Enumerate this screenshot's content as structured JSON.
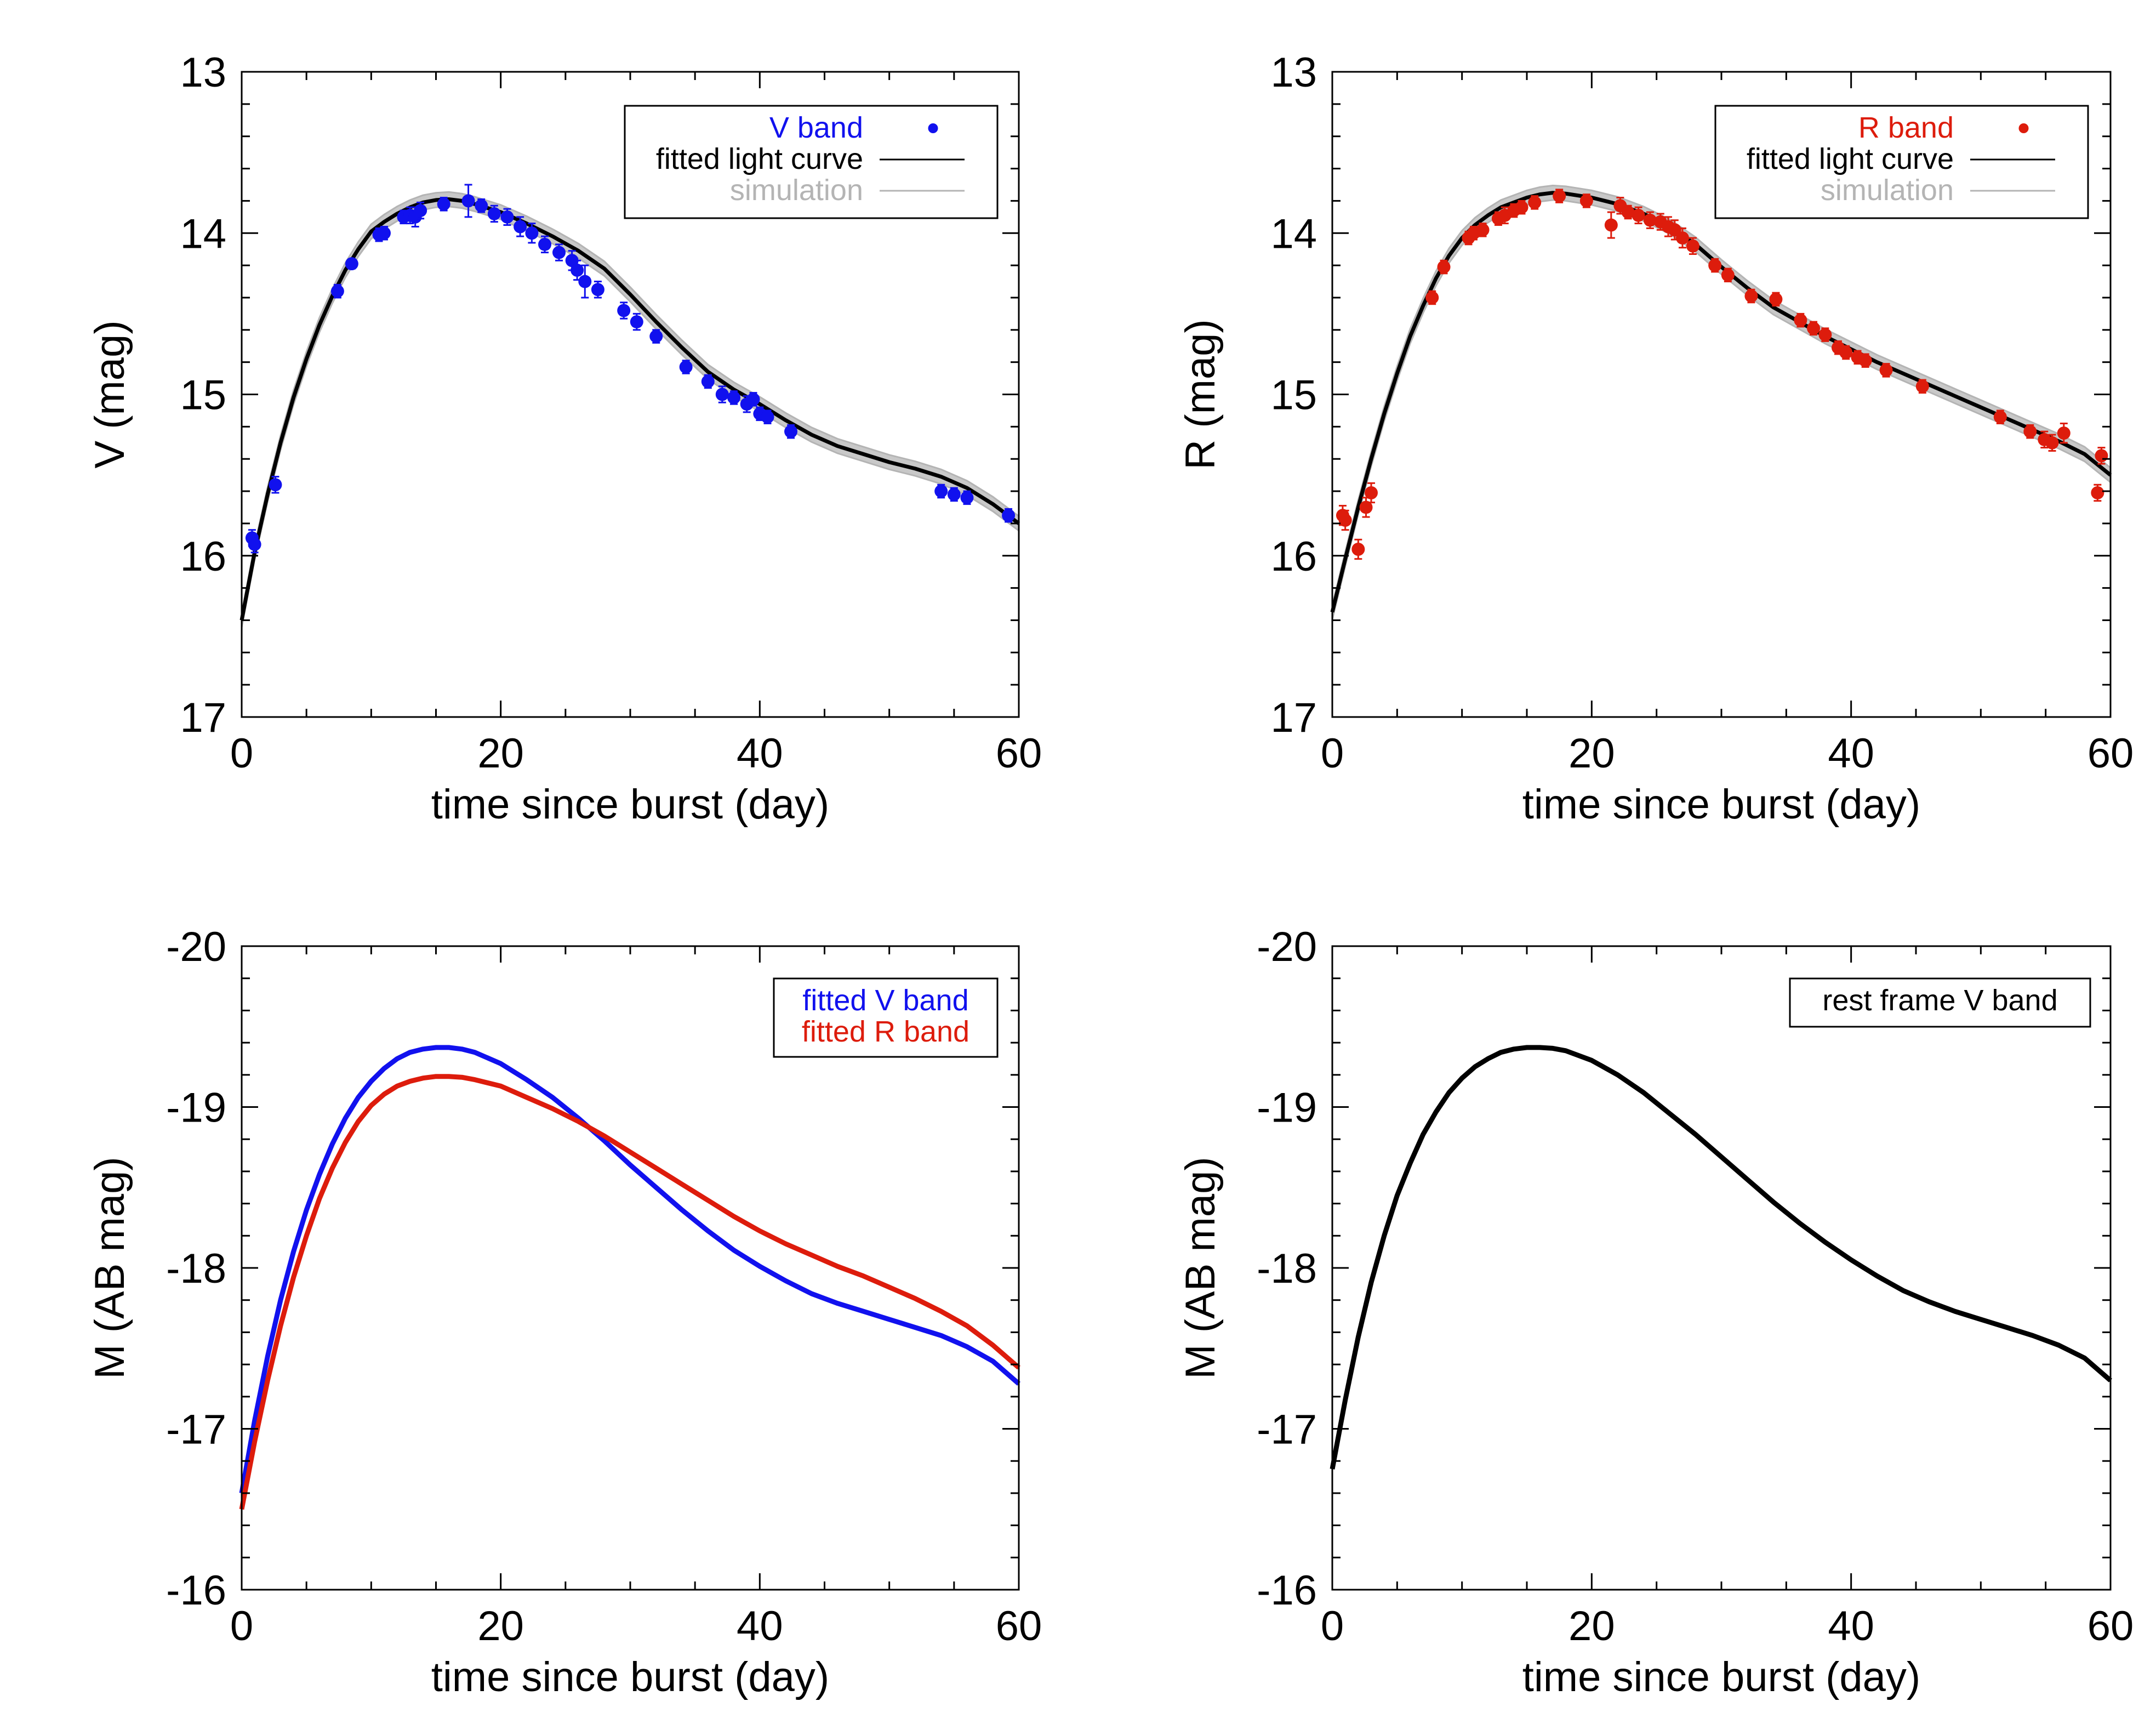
{
  "chart_data": [
    {
      "id": "v-band",
      "type": "scatter",
      "xlabel": "time since burst (day)",
      "ylabel": "V (mag)",
      "xlim": [
        0,
        60
      ],
      "ylim": [
        17,
        13
      ],
      "y_inverted": true,
      "xticks": [
        0,
        20,
        40,
        60
      ],
      "yticks": [
        13,
        14,
        15,
        16,
        17
      ],
      "legend": {
        "placement": "top-right",
        "entries": [
          {
            "label": "V band",
            "color": "#1111ee",
            "kind": "point"
          },
          {
            "label": "fitted light curve",
            "color": "#000000",
            "kind": "line"
          },
          {
            "label": "simulation",
            "color": "#b4b4b4",
            "kind": "line"
          }
        ]
      },
      "curve": [
        [
          0,
          16.4
        ],
        [
          1,
          15.98
        ],
        [
          2,
          15.62
        ],
        [
          3,
          15.3
        ],
        [
          4,
          15.02
        ],
        [
          5,
          14.78
        ],
        [
          6,
          14.57
        ],
        [
          7,
          14.39
        ],
        [
          8,
          14.23
        ],
        [
          9,
          14.1
        ],
        [
          10,
          13.99
        ],
        [
          11,
          13.93
        ],
        [
          12,
          13.88
        ],
        [
          13,
          13.84
        ],
        [
          14,
          13.81
        ],
        [
          15,
          13.795
        ],
        [
          16,
          13.79
        ],
        [
          17,
          13.8
        ],
        [
          18,
          13.82
        ],
        [
          20,
          13.87
        ],
        [
          22,
          13.94
        ],
        [
          24,
          14.02
        ],
        [
          26,
          14.11
        ],
        [
          28,
          14.22
        ],
        [
          30,
          14.38
        ],
        [
          32,
          14.55
        ],
        [
          34,
          14.71
        ],
        [
          36,
          14.86
        ],
        [
          38,
          14.97
        ],
        [
          40,
          15.06
        ],
        [
          42,
          15.16
        ],
        [
          44,
          15.25
        ],
        [
          46,
          15.32
        ],
        [
          48,
          15.37
        ],
        [
          50,
          15.42
        ],
        [
          52,
          15.46
        ],
        [
          54,
          15.51
        ],
        [
          56,
          15.58
        ],
        [
          58,
          15.68
        ],
        [
          60,
          15.8
        ]
      ],
      "points": [
        [
          0.8,
          15.89,
          0.05
        ],
        [
          1.0,
          15.93,
          0.05
        ],
        [
          2.6,
          15.56,
          0.05
        ],
        [
          7.4,
          14.36,
          0.04
        ],
        [
          8.5,
          14.19,
          0.03
        ],
        [
          10.6,
          14.01,
          0.04
        ],
        [
          11.0,
          14.0,
          0.04
        ],
        [
          12.5,
          13.9,
          0.04
        ],
        [
          13.0,
          13.89,
          0.05
        ],
        [
          13.4,
          13.9,
          0.06
        ],
        [
          13.8,
          13.86,
          0.05
        ],
        [
          15.6,
          13.82,
          0.04
        ],
        [
          17.5,
          13.8,
          0.1
        ],
        [
          18.5,
          13.83,
          0.04
        ],
        [
          19.5,
          13.88,
          0.05
        ],
        [
          20.5,
          13.9,
          0.05
        ],
        [
          21.5,
          13.96,
          0.06
        ],
        [
          22.4,
          14.0,
          0.06
        ],
        [
          23.4,
          14.07,
          0.05
        ],
        [
          24.5,
          14.12,
          0.05
        ],
        [
          25.5,
          14.17,
          0.06
        ],
        [
          25.9,
          14.23,
          0.06
        ],
        [
          26.5,
          14.3,
          0.1
        ],
        [
          27.5,
          14.35,
          0.05
        ],
        [
          29.5,
          14.48,
          0.05
        ],
        [
          30.5,
          14.55,
          0.05
        ],
        [
          32.0,
          14.64,
          0.04
        ],
        [
          34.3,
          14.83,
          0.04
        ],
        [
          36.0,
          14.92,
          0.04
        ],
        [
          37.1,
          15.0,
          0.05
        ],
        [
          38.0,
          15.02,
          0.04
        ],
        [
          39.0,
          15.06,
          0.05
        ],
        [
          39.5,
          15.03,
          0.04
        ],
        [
          40.0,
          15.12,
          0.04
        ],
        [
          40.6,
          15.14,
          0.04
        ],
        [
          42.4,
          15.23,
          0.04
        ],
        [
          54.0,
          15.6,
          0.04
        ],
        [
          55.0,
          15.62,
          0.04
        ],
        [
          56.0,
          15.64,
          0.04
        ],
        [
          59.2,
          15.75,
          0.04
        ]
      ]
    },
    {
      "id": "r-band",
      "type": "scatter",
      "xlabel": "time since burst (day)",
      "ylabel": "R (mag)",
      "xlim": [
        0,
        60
      ],
      "ylim": [
        17,
        13
      ],
      "y_inverted": true,
      "xticks": [
        0,
        20,
        40,
        60
      ],
      "yticks": [
        13,
        14,
        15,
        16,
        17
      ],
      "legend": {
        "placement": "top-right",
        "entries": [
          {
            "label": "R band",
            "color": "#dd1c0c",
            "kind": "point"
          },
          {
            "label": "fitted light curve",
            "color": "#000000",
            "kind": "line"
          },
          {
            "label": "simulation",
            "color": "#b4b4b4",
            "kind": "line"
          }
        ]
      },
      "curve": [
        [
          0,
          16.35
        ],
        [
          1,
          16.02
        ],
        [
          2,
          15.7
        ],
        [
          3,
          15.4
        ],
        [
          4,
          15.12
        ],
        [
          5,
          14.87
        ],
        [
          6,
          14.64
        ],
        [
          7,
          14.45
        ],
        [
          8,
          14.28
        ],
        [
          9,
          14.14
        ],
        [
          10,
          14.03
        ],
        [
          11,
          13.95
        ],
        [
          12,
          13.89
        ],
        [
          13,
          13.84
        ],
        [
          14,
          13.81
        ],
        [
          15,
          13.78
        ],
        [
          16,
          13.76
        ],
        [
          17,
          13.75
        ],
        [
          18,
          13.755
        ],
        [
          20,
          13.78
        ],
        [
          22,
          13.82
        ],
        [
          24,
          13.88
        ],
        [
          26,
          13.96
        ],
        [
          28,
          14.07
        ],
        [
          30,
          14.21
        ],
        [
          32,
          14.34
        ],
        [
          34,
          14.46
        ],
        [
          36,
          14.55
        ],
        [
          38,
          14.64
        ],
        [
          40,
          14.72
        ],
        [
          42,
          14.8
        ],
        [
          44,
          14.87
        ],
        [
          46,
          14.94
        ],
        [
          48,
          15.01
        ],
        [
          50,
          15.08
        ],
        [
          52,
          15.15
        ],
        [
          54,
          15.22
        ],
        [
          56,
          15.29
        ],
        [
          58,
          15.37
        ],
        [
          60,
          15.5
        ]
      ],
      "points": [
        [
          0.8,
          15.75,
          0.06
        ],
        [
          1.0,
          15.78,
          0.06
        ],
        [
          2.0,
          15.96,
          0.06
        ],
        [
          2.6,
          15.7,
          0.06
        ],
        [
          3.0,
          15.61,
          0.06
        ],
        [
          7.7,
          14.4,
          0.04
        ],
        [
          8.6,
          14.21,
          0.04
        ],
        [
          10.5,
          14.03,
          0.04
        ],
        [
          10.9,
          14.0,
          0.04
        ],
        [
          11.6,
          13.98,
          0.04
        ],
        [
          12.8,
          13.91,
          0.04
        ],
        [
          13.3,
          13.89,
          0.05
        ],
        [
          14.0,
          13.86,
          0.04
        ],
        [
          14.6,
          13.84,
          0.04
        ],
        [
          15.6,
          13.81,
          0.04
        ],
        [
          17.5,
          13.77,
          0.04
        ],
        [
          19.6,
          13.8,
          0.04
        ],
        [
          21.5,
          13.95,
          0.08
        ],
        [
          22.2,
          13.83,
          0.05
        ],
        [
          22.8,
          13.87,
          0.04
        ],
        [
          23.6,
          13.89,
          0.05
        ],
        [
          24.5,
          13.92,
          0.05
        ],
        [
          25.3,
          13.93,
          0.05
        ],
        [
          25.9,
          13.96,
          0.06
        ],
        [
          26.4,
          13.98,
          0.06
        ],
        [
          27.0,
          14.03,
          0.06
        ],
        [
          27.8,
          14.08,
          0.05
        ],
        [
          29.5,
          14.2,
          0.04
        ],
        [
          30.5,
          14.26,
          0.04
        ],
        [
          32.3,
          14.39,
          0.04
        ],
        [
          34.2,
          14.41,
          0.04
        ],
        [
          36.1,
          14.54,
          0.04
        ],
        [
          37.1,
          14.59,
          0.04
        ],
        [
          38.0,
          14.63,
          0.04
        ],
        [
          39.0,
          14.71,
          0.04
        ],
        [
          39.6,
          14.74,
          0.04
        ],
        [
          40.5,
          14.77,
          0.04
        ],
        [
          41.1,
          14.79,
          0.04
        ],
        [
          42.7,
          14.85,
          0.04
        ],
        [
          45.5,
          14.95,
          0.04
        ],
        [
          51.5,
          15.14,
          0.04
        ],
        [
          53.8,
          15.23,
          0.04
        ],
        [
          54.9,
          15.28,
          0.05
        ],
        [
          55.5,
          15.3,
          0.05
        ],
        [
          56.4,
          15.24,
          0.06
        ],
        [
          59.0,
          15.61,
          0.05
        ],
        [
          59.3,
          15.38,
          0.05
        ]
      ]
    },
    {
      "id": "abs-mag-vr",
      "type": "line",
      "xlabel": "time since burst (day)",
      "ylabel": "M (AB mag)",
      "xlim": [
        0,
        60
      ],
      "ylim": [
        -16,
        -20
      ],
      "y_inverted": false,
      "xticks": [
        0,
        20,
        40,
        60
      ],
      "yticks": [
        -20,
        -19,
        -18,
        -17,
        -16
      ],
      "legend": {
        "placement": "top-right",
        "entries": [
          {
            "label": "fitted V band",
            "color": "#1111ee",
            "kind": "text"
          },
          {
            "label": "fitted R band",
            "color": "#dd1c0c",
            "kind": "text"
          }
        ]
      },
      "series": [
        {
          "name": "fitted V band",
          "color": "#1111ee",
          "x": [
            0,
            1,
            2,
            3,
            4,
            5,
            6,
            7,
            8,
            9,
            10,
            11,
            12,
            13,
            14,
            15,
            16,
            17,
            18,
            20,
            22,
            24,
            26,
            28,
            30,
            32,
            34,
            36,
            38,
            40,
            42,
            44,
            46,
            48,
            50,
            52,
            54,
            56,
            58,
            60
          ],
          "y": [
            -16.6,
            -17.05,
            -17.45,
            -17.8,
            -18.1,
            -18.36,
            -18.58,
            -18.77,
            -18.93,
            -19.06,
            -19.16,
            -19.24,
            -19.3,
            -19.34,
            -19.36,
            -19.37,
            -19.37,
            -19.36,
            -19.34,
            -19.27,
            -19.17,
            -19.06,
            -18.93,
            -18.79,
            -18.64,
            -18.5,
            -18.36,
            -18.23,
            -18.11,
            -18.01,
            -17.92,
            -17.84,
            -17.78,
            -17.73,
            -17.68,
            -17.63,
            -17.58,
            -17.51,
            -17.42,
            -17.28
          ]
        },
        {
          "name": "fitted R band",
          "color": "#dd1c0c",
          "x": [
            0,
            1,
            2,
            3,
            4,
            5,
            6,
            7,
            8,
            9,
            10,
            11,
            12,
            13,
            14,
            15,
            16,
            17,
            18,
            20,
            22,
            24,
            26,
            28,
            30,
            32,
            34,
            36,
            38,
            40,
            42,
            44,
            46,
            48,
            50,
            52,
            54,
            56,
            58,
            60
          ],
          "y": [
            -16.5,
            -16.92,
            -17.3,
            -17.64,
            -17.94,
            -18.2,
            -18.43,
            -18.62,
            -18.78,
            -18.91,
            -19.01,
            -19.08,
            -19.13,
            -19.16,
            -19.18,
            -19.19,
            -19.19,
            -19.185,
            -19.17,
            -19.13,
            -19.06,
            -18.99,
            -18.91,
            -18.82,
            -18.72,
            -18.62,
            -18.52,
            -18.42,
            -18.32,
            -18.23,
            -18.15,
            -18.08,
            -18.01,
            -17.95,
            -17.88,
            -17.81,
            -17.73,
            -17.64,
            -17.52,
            -17.38
          ]
        }
      ]
    },
    {
      "id": "abs-mag-rest",
      "type": "line",
      "xlabel": "time since burst (day)",
      "ylabel": "M (AB mag)",
      "xlim": [
        0,
        60
      ],
      "ylim": [
        -16,
        -20
      ],
      "y_inverted": false,
      "xticks": [
        0,
        20,
        40,
        60
      ],
      "yticks": [
        -20,
        -19,
        -18,
        -17,
        -16
      ],
      "legend": {
        "placement": "top-right",
        "entries": [
          {
            "label": "rest frame V band",
            "color": "#000000",
            "kind": "text"
          }
        ]
      },
      "series": [
        {
          "name": "rest frame V band",
          "color": "#000000",
          "x": [
            0,
            1,
            2,
            3,
            4,
            5,
            6,
            7,
            8,
            9,
            10,
            11,
            12,
            13,
            14,
            15,
            16,
            17,
            18,
            20,
            22,
            24,
            26,
            28,
            30,
            32,
            34,
            36,
            38,
            40,
            42,
            44,
            46,
            48,
            50,
            52,
            54,
            56,
            58,
            60
          ],
          "y": [
            -16.75,
            -17.18,
            -17.57,
            -17.91,
            -18.2,
            -18.45,
            -18.65,
            -18.83,
            -18.97,
            -19.09,
            -19.18,
            -19.25,
            -19.3,
            -19.34,
            -19.36,
            -19.37,
            -19.37,
            -19.365,
            -19.35,
            -19.29,
            -19.2,
            -19.09,
            -18.96,
            -18.83,
            -18.69,
            -18.55,
            -18.41,
            -18.28,
            -18.16,
            -18.05,
            -17.95,
            -17.86,
            -17.79,
            -17.73,
            -17.68,
            -17.63,
            -17.58,
            -17.52,
            -17.44,
            -17.3
          ]
        }
      ]
    }
  ]
}
